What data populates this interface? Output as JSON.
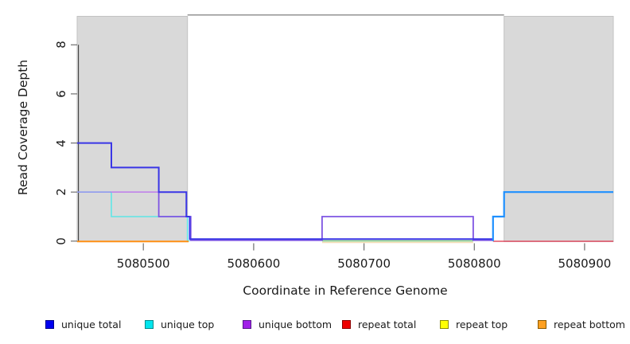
{
  "chart_data": {
    "type": "line",
    "subtype": "step-coverage-plot",
    "title": "",
    "xlabel": "Coordinate in Reference Genome",
    "ylabel": "Read Coverage Depth",
    "xlim": [
      5080440,
      5080926
    ],
    "ylim": [
      0,
      9.2
    ],
    "x_ticks": [
      5080500,
      5080600,
      5080700,
      5080800,
      5080900
    ],
    "y_ticks": [
      0,
      2,
      4,
      6,
      8
    ],
    "grid": false,
    "legend_position": "bottom",
    "background_color": "#FFFFFF",
    "repeat_region_color": "#D9D9D9",
    "repeat_region_border": "#C2C2C2",
    "repeat_regions": [
      [
        5080440,
        5080540
      ],
      [
        5080827,
        5080926
      ]
    ],
    "axis_style": {
      "tick_color": "#6F6F6F",
      "y_axis_line_color": "#3F3F3F",
      "box_top_line_color": "#8A8A8A",
      "text_color": "#1A1A1A"
    },
    "series": [
      {
        "name": "overlap_tan_baseline",
        "color": "#F2DCB4",
        "width": 1.6,
        "zero_offset": -1.7,
        "points": [
          [
            5080662,
            0
          ],
          [
            5080799,
            0
          ]
        ]
      },
      {
        "name": "overlap_green_baseline",
        "color": "#7DC87D",
        "width": 1.4,
        "zero_offset": 0.3,
        "points": [
          [
            5080662,
            0
          ],
          [
            5080799,
            0
          ]
        ]
      },
      {
        "name": "unique_top",
        "color": "#5FE6E6",
        "width": 1.6,
        "zero_offset": 0.3,
        "points": [
          [
            5080471,
            2
          ],
          [
            5080471,
            1
          ],
          [
            5080540,
            1
          ],
          [
            5080540,
            0
          ],
          [
            5080542,
            0
          ]
        ]
      },
      {
        "name": "repeat_bottom",
        "color": "#FF9014",
        "width": 2.0,
        "zero_offset": -0.5,
        "points": [
          [
            5080440,
            0
          ],
          [
            5080541,
            0
          ]
        ]
      },
      {
        "name": "unique_bottom_level2_a",
        "color": "#8F9AEF",
        "width": 1.6,
        "zero_offset": 0,
        "points": [
          [
            5080440,
            2
          ],
          [
            5080471,
            2
          ]
        ]
      },
      {
        "name": "unique_bottom_level2_b",
        "color": "#C083EA",
        "width": 1.6,
        "zero_offset": 0,
        "points": [
          [
            5080471,
            2
          ],
          [
            5080514,
            2
          ]
        ]
      },
      {
        "name": "unique_bottom",
        "color": "#7F55E3",
        "width": 1.8,
        "zero_offset": 1.1,
        "points": [
          [
            5080514,
            2
          ],
          [
            5080514,
            1
          ],
          [
            5080543,
            1
          ],
          [
            5080543,
            0
          ],
          [
            5080662,
            0
          ],
          [
            5080662,
            1
          ],
          [
            5080799,
            1
          ],
          [
            5080799,
            0
          ],
          [
            5080817,
            0
          ]
        ]
      },
      {
        "name": "unique_total",
        "color": "#3A36E6",
        "width": 2.0,
        "zero_offset": 2.5,
        "points": [
          [
            5080440,
            4
          ],
          [
            5080471,
            4
          ],
          [
            5080471,
            3
          ],
          [
            5080514,
            3
          ],
          [
            5080514,
            2
          ],
          [
            5080539,
            2
          ],
          [
            5080539,
            1
          ],
          [
            5080542,
            1
          ],
          [
            5080542,
            0
          ],
          [
            5080817,
            0
          ]
        ]
      },
      {
        "name": "repeat_total",
        "color": "#E25064",
        "width": 1.4,
        "zero_offset": -0.2,
        "points": [
          [
            5080817,
            0
          ],
          [
            5080926,
            0
          ]
        ]
      },
      {
        "name": "unique_total_top_right",
        "color": "#1E90FF",
        "width": 2.2,
        "zero_offset": 0,
        "points": [
          [
            5080817,
            0
          ],
          [
            5080817,
            1
          ],
          [
            5080827,
            1
          ],
          [
            5080827,
            2
          ],
          [
            5080926,
            2
          ]
        ]
      }
    ],
    "legend": [
      {
        "label": "unique total",
        "fill": "#0000F0",
        "border": "#00008B"
      },
      {
        "label": "unique top",
        "fill": "#00E5EE",
        "border": "#008B8B"
      },
      {
        "label": "unique bottom",
        "fill": "#A020E8",
        "border": "#551A8B"
      },
      {
        "label": "repeat total",
        "fill": "#EE0000",
        "border": "#8B0000"
      },
      {
        "label": "repeat top",
        "fill": "#FFFF00",
        "border": "#8B8B00"
      },
      {
        "label": "repeat bottom",
        "fill": "#FFA020",
        "border": "#8B5A00"
      }
    ]
  }
}
